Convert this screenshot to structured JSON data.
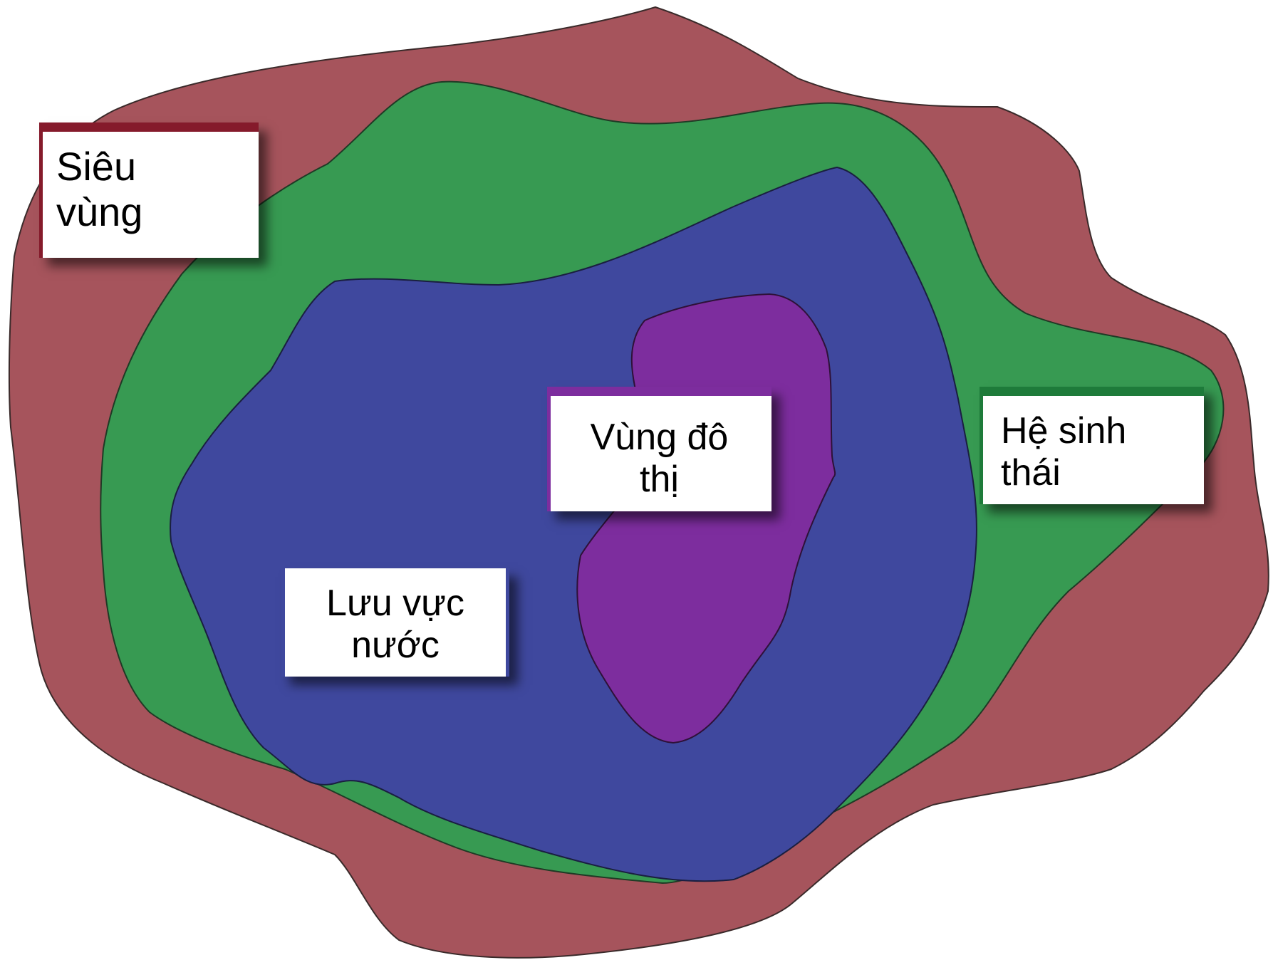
{
  "regions": [
    {
      "name": "Siêu vùng",
      "color": "#A6545C",
      "accent": "#851A2B"
    },
    {
      "name": "Hệ sinh thái",
      "color": "#379A52",
      "accent": "#1E7B3A"
    },
    {
      "name": "Lưu vực nước",
      "color": "#3F489E",
      "accent": "#3F489E"
    },
    {
      "name": "Vùng đô thị",
      "color": "#7D2D9E",
      "accent": "#7D2D9E"
    }
  ],
  "labels": {
    "supra_region": {
      "line1": "Siêu",
      "line2": "vùng"
    },
    "ecosystem": {
      "line1": "Hệ sinh",
      "line2": "thái"
    },
    "watershed": {
      "line1": "Lưu vực",
      "line2": "nước"
    },
    "urban_area": {
      "line1": "Vùng đô",
      "line2": "thị"
    }
  }
}
